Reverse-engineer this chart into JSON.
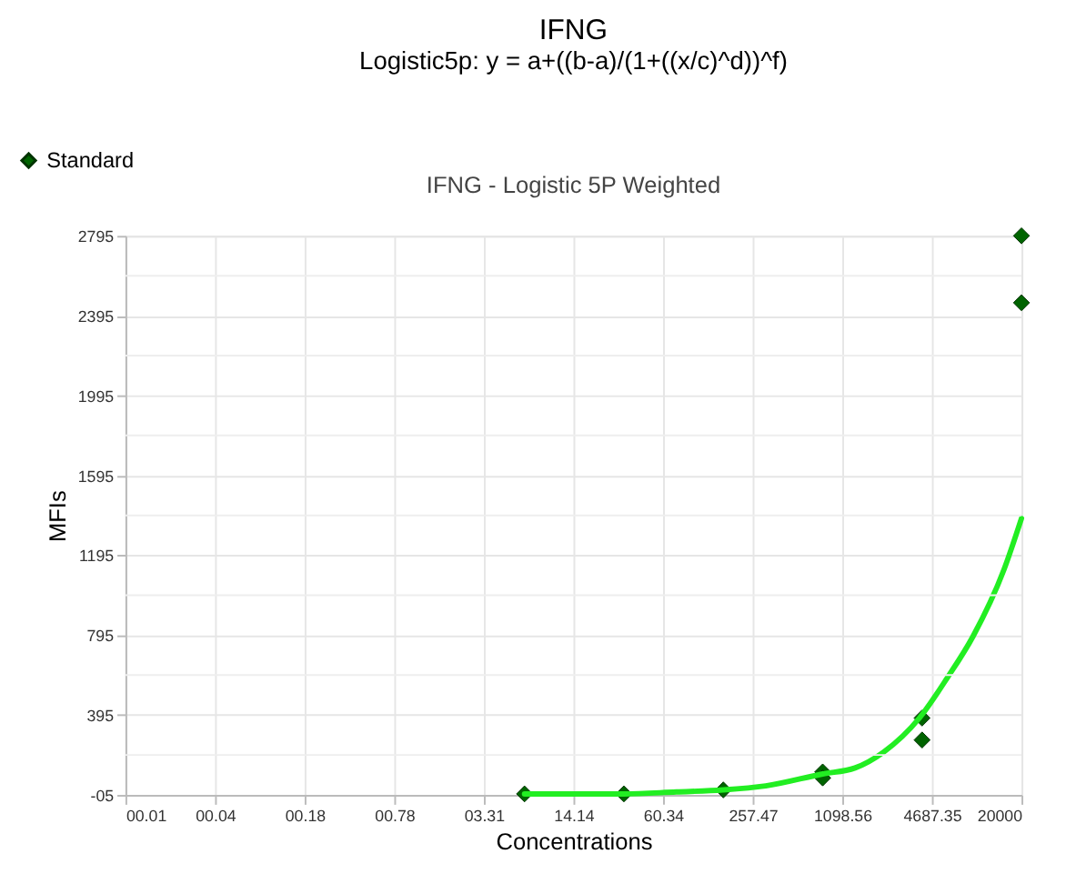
{
  "chart_data": {
    "type": "scatter",
    "title": "IFNG",
    "subtitle": "Logistic5p: y = a+((b-a)/(1+((x/c)^d))^f)",
    "annotations": [
      "IFNG - Logistic 5P Weighted"
    ],
    "xlabel": "Concentrations",
    "ylabel": "MFIs",
    "log": "x",
    "xlim": [
      0.01,
      20000
    ],
    "xticks": [
      {
        "value": 0.01,
        "label": "00.01"
      },
      {
        "value": 0.04267,
        "label": "00.04"
      },
      {
        "value": 0.182,
        "label": "00.18"
      },
      {
        "value": 0.777,
        "label": "00.78"
      },
      {
        "value": 3.31,
        "label": "03.31"
      },
      14.14,
      60.34,
      257.47,
      1098.56,
      4687.35,
      20000
    ],
    "ylim": [
      -5,
      2795
    ],
    "yticks": [
      {
        "value": -5,
        "label": "-05"
      },
      {
        "value": 195,
        "label": null
      },
      395,
      {
        "value": 595,
        "label": null
      },
      795,
      {
        "value": 995,
        "label": null
      },
      1195,
      {
        "value": 1395,
        "label": null
      },
      1595,
      {
        "value": 1795,
        "label": null
      },
      1995,
      {
        "value": 2195,
        "label": null
      },
      2395,
      {
        "value": 2595,
        "label": null
      },
      2795
    ],
    "grid": true,
    "legend": "top left",
    "series": [
      {
        "name": "Standard",
        "marker": "diamond",
        "color": "#006400",
        "x": [
          6.4,
          32,
          160,
          800,
          800,
          4000,
          4000,
          20000,
          20000
        ],
        "values": [
          0,
          0,
          20,
          110,
          80,
          380,
          270,
          2795,
          2460
        ]
      },
      {
        "type": "line",
        "line_style": "solid",
        "color": "#22ee22",
        "x": [
          6.4,
          32,
          75,
          160,
          318,
          800,
          1350,
          2150,
          3830,
          6000,
          9140,
          15000,
          20000
        ],
        "values": [
          0,
          0,
          10,
          20,
          40,
          100,
          130,
          210,
          380,
          580,
          790,
          1120,
          1380
        ]
      }
    ]
  }
}
